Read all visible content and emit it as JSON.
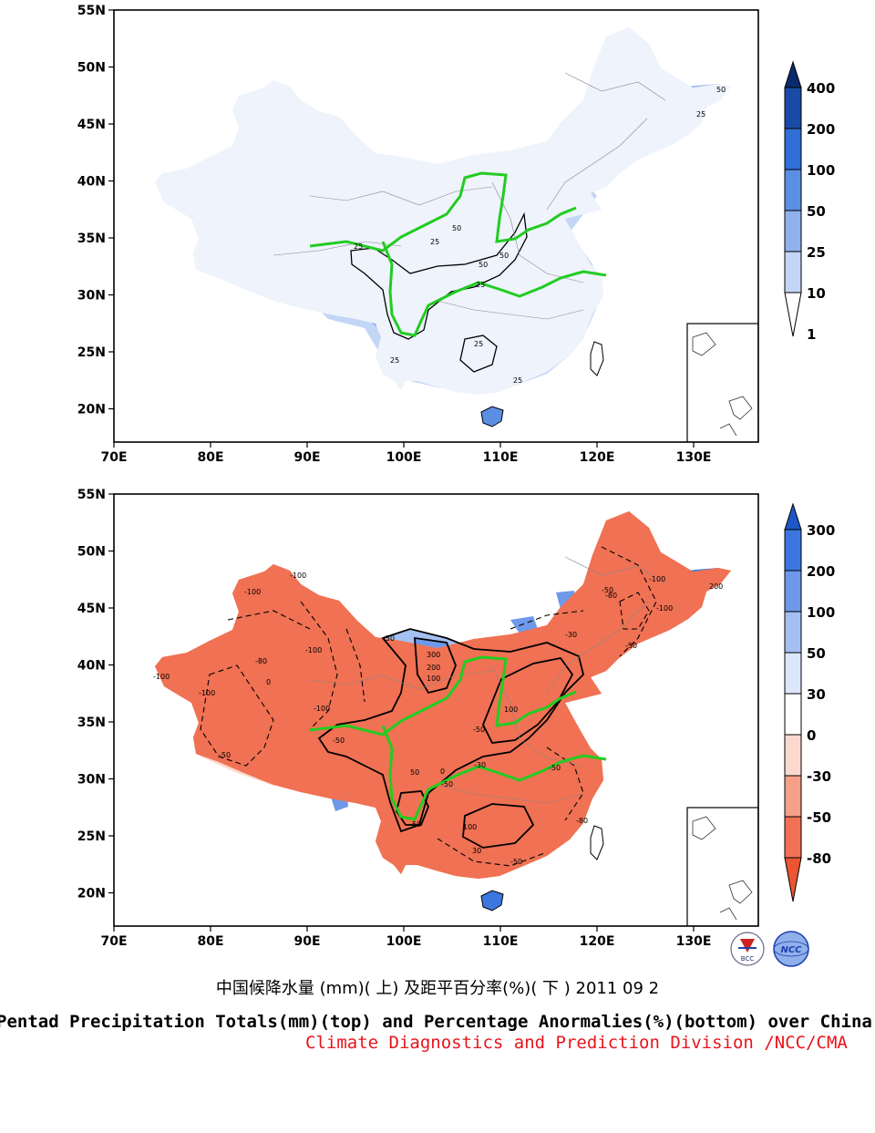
{
  "top_panel": {
    "lat_labels": [
      "55N",
      "50N",
      "45N",
      "40N",
      "35N",
      "30N",
      "25N",
      "20N"
    ],
    "lon_labels": [
      "70E",
      "80E",
      "90E",
      "100E",
      "110E",
      "120E",
      "130E"
    ],
    "colorbar": {
      "levels": [
        "400",
        "200",
        "100",
        "50",
        "25",
        "10",
        "1"
      ],
      "colors": [
        "#0a2a6e",
        "#1a4aa8",
        "#2f6fd6",
        "#5b8fe3",
        "#8fb1ee",
        "#c3d6f6",
        "#ffffff"
      ]
    },
    "contour_labels": [
      "50",
      "25",
      "25",
      "50",
      "50",
      "25",
      "25",
      "25",
      "25",
      "25",
      "50"
    ]
  },
  "bottom_panel": {
    "lat_labels": [
      "55N",
      "50N",
      "45N",
      "40N",
      "35N",
      "30N",
      "25N",
      "20N"
    ],
    "lon_labels": [
      "70E",
      "80E",
      "90E",
      "100E",
      "110E",
      "120E",
      "130E"
    ],
    "colorbar": {
      "levels": [
        "300",
        "200",
        "100",
        "50",
        "30",
        "0",
        "-30",
        "-50",
        "-80"
      ],
      "colors": [
        "#1d56c9",
        "#3c77e0",
        "#6e99ea",
        "#a4c0f2",
        "#dbe6fa",
        "#ffffff",
        "#fbd9cf",
        "#f5a088",
        "#f07153",
        "#ec5532"
      ]
    },
    "contour_labels": [
      "-100",
      "-100",
      "-100",
      "-100",
      "-100",
      "-80",
      "-50",
      "-50",
      "-100",
      "0",
      "-30",
      "300",
      "200",
      "100",
      "100",
      "-50",
      "50",
      "-50",
      "0",
      "-30",
      "-50",
      "30",
      "50",
      "-80",
      "-50",
      "-100",
      "200",
      "-100",
      "-80",
      "-50",
      "-30",
      "-50",
      "100"
    ]
  },
  "caption": {
    "chinese": "中国候降水量 (mm)( 上) 及距平百分率(%)( 下 ) 2011 09 2",
    "english": "Pentad Precipitation Totals(mm)(top) and Percentage Anormalies(%)(bottom) over China",
    "organization": "Climate Diagnostics and Prediction Division /NCC/CMA"
  },
  "logos": {
    "left": "BCC",
    "right": "NCC"
  }
}
